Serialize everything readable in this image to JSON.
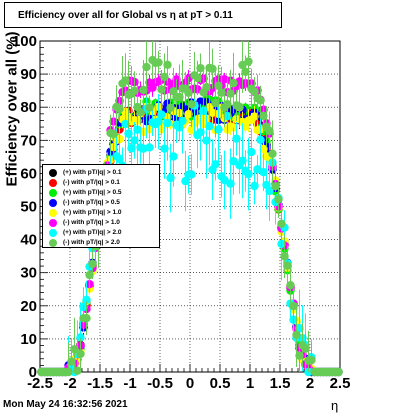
{
  "title": "Efficiency over all for Global vs   η at pT > 0.11",
  "footer": "Mon May 24 16:32:56 2021",
  "chart_data": {
    "type": "scatter",
    "title": "Efficiency over all for Global vs   η at pT > 0.11",
    "xlabel": "η",
    "ylabel": "Efficiency over all (%)",
    "xlim": [
      -2.5,
      2.5
    ],
    "ylim": [
      0,
      100
    ],
    "x_ticks": [
      "-2.5",
      "-2",
      "-1.5",
      "-1",
      "-0.5",
      "0",
      "0.5",
      "1",
      "1.5",
      "2",
      "2.5"
    ],
    "y_ticks": [
      "0",
      "10",
      "20",
      "30",
      "40",
      "50",
      "60",
      "70",
      "80",
      "90",
      "100"
    ],
    "grid": true,
    "legend_position": "left-middle",
    "series": [
      {
        "name": "(+) with pT/|q| > 0.1",
        "color": "#000000",
        "plateau": 78,
        "spread": 2,
        "err": 1.5
      },
      {
        "name": "(-) with pT/|q| > 0.1",
        "color": "#ff0000",
        "plateau": 77,
        "spread": 2,
        "err": 1.5
      },
      {
        "name": "(+) with pT/|q| > 0.5",
        "color": "#00ee00",
        "plateau": 79,
        "spread": 3,
        "err": 2
      },
      {
        "name": "(-) with pT/|q| > 0.5",
        "color": "#0000ff",
        "plateau": 78,
        "spread": 3,
        "err": 2
      },
      {
        "name": "(+) with pT/|q| > 1.0",
        "color": "#ffff00",
        "plateau": 76,
        "spread": 4,
        "err": 3
      },
      {
        "name": "(-) with pT/|q| > 1.0",
        "color": "#ff00ff",
        "plateau": 86,
        "spread": 2,
        "err": 2
      },
      {
        "name": "(+) with pT/|q| > 2.0",
        "color": "#00ffff",
        "plateau": 68,
        "spread": 12,
        "err": 8
      },
      {
        "name": "(-) with pT/|q| > 2.0",
        "color": "#66cc55",
        "plateau": 86,
        "spread": 8,
        "err": 7
      }
    ]
  }
}
